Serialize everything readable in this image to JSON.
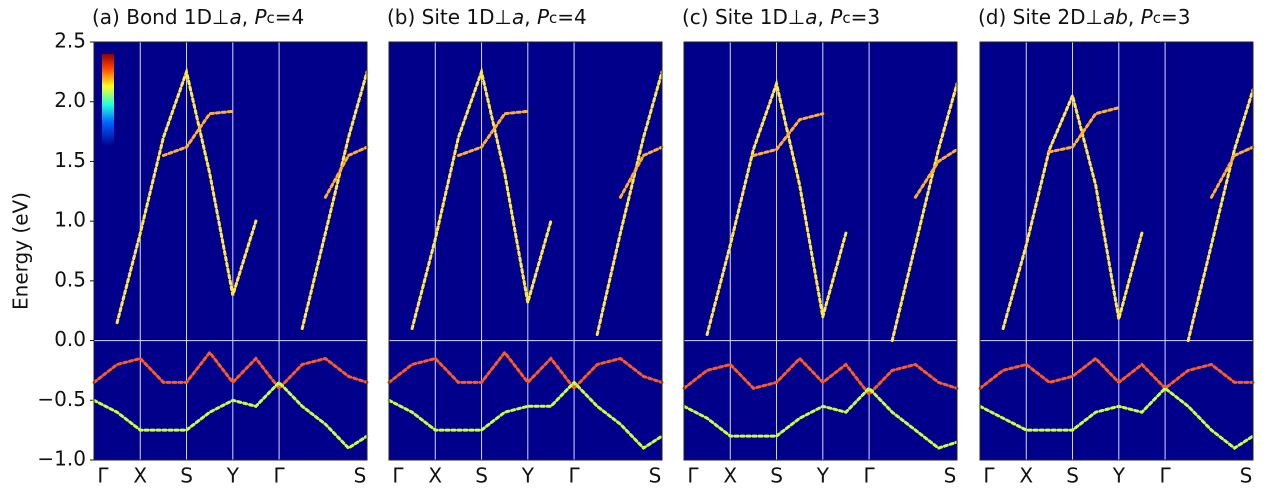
{
  "chart_data": [
    {
      "type": "band",
      "title_runs": [
        {
          "text": "(a) Bond 1D⊥"
        },
        {
          "text": "a",
          "italic": true
        },
        {
          "text": ", "
        },
        {
          "text": "P",
          "italic": true
        },
        {
          "text": "c",
          "small": true
        },
        {
          "text": "=4"
        }
      ],
      "y_label": "Energy (eV)",
      "xlim": [
        0,
        5.9
      ],
      "xticks": [
        {
          "value": 0,
          "label": "Γ"
        },
        {
          "value": 1,
          "label": "X"
        },
        {
          "value": 2,
          "label": "S"
        },
        {
          "value": 3,
          "label": "Y"
        },
        {
          "value": 4,
          "label": "Γ"
        },
        {
          "value": 5.9,
          "label": "S"
        }
      ],
      "ylim": [
        -1.0,
        2.5
      ],
      "yticks": [
        {
          "value": -1.0,
          "label": "−1.0"
        },
        {
          "value": -0.5,
          "label": "−0.5"
        },
        {
          "value": 0.0,
          "label": "0.0"
        },
        0.5,
        {
          "value": 1.0,
          "label": "1.0"
        },
        1.5,
        {
          "value": 2.0,
          "label": "2.0"
        },
        2.5
      ],
      "background": "#00008b",
      "grid": true,
      "hline": 0,
      "x": [
        0,
        0.5,
        1,
        1.5,
        2,
        2.5,
        3,
        3.5,
        4,
        4.5,
        5,
        5.5,
        5.9
      ],
      "series": [
        {
          "color": "#ffe84a",
          "values": [
            null,
            0.15,
            0.9,
            1.7,
            2.25,
            1.4,
            0.38,
            1.0,
            null,
            0.1,
            0.9,
            1.7,
            2.25
          ]
        },
        {
          "color": "#ffb030",
          "values": [
            null,
            null,
            null,
            1.55,
            1.62,
            1.9,
            1.92,
            null,
            null,
            null,
            1.2,
            1.55,
            1.62
          ]
        },
        {
          "color": "#ff5a20",
          "values": [
            -0.35,
            -0.2,
            -0.15,
            -0.35,
            -0.35,
            -0.1,
            -0.35,
            -0.15,
            -0.4,
            -0.2,
            -0.15,
            -0.3,
            -0.35
          ]
        },
        {
          "color": "#c8ff40",
          "values": [
            -0.5,
            -0.6,
            -0.75,
            -0.75,
            -0.75,
            -0.6,
            -0.5,
            -0.55,
            -0.35,
            -0.55,
            -0.7,
            -0.9,
            -0.8
          ]
        }
      ]
    },
    {
      "type": "band",
      "title_runs": [
        {
          "text": "(b) Site 1D⊥"
        },
        {
          "text": "a",
          "italic": true
        },
        {
          "text": ", "
        },
        {
          "text": "P",
          "italic": true
        },
        {
          "text": "c",
          "small": true
        },
        {
          "text": "=4"
        }
      ],
      "xlim": [
        0,
        5.9
      ],
      "xticks": [
        {
          "value": 0,
          "label": "Γ"
        },
        {
          "value": 1,
          "label": "X"
        },
        {
          "value": 2,
          "label": "S"
        },
        {
          "value": 3,
          "label": "Y"
        },
        {
          "value": 4,
          "label": "Γ"
        },
        {
          "value": 5.9,
          "label": "S"
        }
      ],
      "ylim": [
        -1.0,
        2.5
      ],
      "background": "#00008b",
      "grid": true,
      "hline": 0,
      "x": [
        0,
        0.5,
        1,
        1.5,
        2,
        2.5,
        3,
        3.5,
        4,
        4.5,
        5,
        5.5,
        5.9
      ],
      "series": [
        {
          "color": "#ffe84a",
          "values": [
            null,
            0.1,
            0.85,
            1.7,
            2.25,
            1.4,
            0.32,
            1.0,
            null,
            0.05,
            0.9,
            1.7,
            2.25
          ]
        },
        {
          "color": "#ffb030",
          "values": [
            null,
            null,
            null,
            1.55,
            1.62,
            1.9,
            1.92,
            null,
            null,
            null,
            1.2,
            1.55,
            1.62
          ]
        },
        {
          "color": "#ff5a20",
          "values": [
            -0.35,
            -0.2,
            -0.15,
            -0.35,
            -0.35,
            -0.1,
            -0.35,
            -0.15,
            -0.4,
            -0.2,
            -0.15,
            -0.3,
            -0.35
          ]
        },
        {
          "color": "#c8ff40",
          "values": [
            -0.5,
            -0.6,
            -0.75,
            -0.75,
            -0.75,
            -0.6,
            -0.55,
            -0.55,
            -0.35,
            -0.55,
            -0.7,
            -0.9,
            -0.8
          ]
        }
      ]
    },
    {
      "type": "band",
      "title_runs": [
        {
          "text": "(c) Site 1D⊥"
        },
        {
          "text": "a",
          "italic": true
        },
        {
          "text": ", "
        },
        {
          "text": "P",
          "italic": true
        },
        {
          "text": "c",
          "small": true
        },
        {
          "text": "=3"
        }
      ],
      "xlim": [
        0,
        5.9
      ],
      "xticks": [
        {
          "value": 0,
          "label": "Γ"
        },
        {
          "value": 1,
          "label": "X"
        },
        {
          "value": 2,
          "label": "S"
        },
        {
          "value": 3,
          "label": "Y"
        },
        {
          "value": 4,
          "label": "Γ"
        },
        {
          "value": 5.9,
          "label": "S"
        }
      ],
      "ylim": [
        -1.0,
        2.5
      ],
      "background": "#00008b",
      "grid": true,
      "hline": 0,
      "x": [
        0,
        0.5,
        1,
        1.5,
        2,
        2.5,
        3,
        3.5,
        4,
        4.5,
        5,
        5.5,
        5.9
      ],
      "series": [
        {
          "color": "#ffe84a",
          "values": [
            null,
            0.05,
            0.8,
            1.6,
            2.15,
            1.3,
            0.2,
            0.9,
            null,
            0.0,
            0.8,
            1.6,
            2.15
          ]
        },
        {
          "color": "#ffb030",
          "values": [
            null,
            null,
            null,
            1.55,
            1.6,
            1.85,
            1.9,
            null,
            null,
            null,
            1.2,
            1.5,
            1.6
          ]
        },
        {
          "color": "#ff5a20",
          "values": [
            -0.4,
            -0.25,
            -0.2,
            -0.4,
            -0.35,
            -0.15,
            -0.35,
            -0.2,
            -0.45,
            -0.25,
            -0.2,
            -0.35,
            -0.4
          ]
        },
        {
          "color": "#c8ff40",
          "values": [
            -0.55,
            -0.65,
            -0.8,
            -0.8,
            -0.8,
            -0.65,
            -0.55,
            -0.6,
            -0.4,
            -0.6,
            -0.75,
            -0.9,
            -0.85
          ]
        }
      ]
    },
    {
      "type": "band",
      "title_runs": [
        {
          "text": "(d) Site 2D⊥"
        },
        {
          "text": "ab",
          "italic": true
        },
        {
          "text": ", "
        },
        {
          "text": "P",
          "italic": true
        },
        {
          "text": "c",
          "small": true
        },
        {
          "text": "=3"
        }
      ],
      "xlim": [
        0,
        5.9
      ],
      "xticks": [
        {
          "value": 0,
          "label": "Γ"
        },
        {
          "value": 1,
          "label": "X"
        },
        {
          "value": 2,
          "label": "S"
        },
        {
          "value": 3,
          "label": "Y"
        },
        {
          "value": 4,
          "label": "Γ"
        },
        {
          "value": 5.9,
          "label": "S"
        }
      ],
      "ylim": [
        -1.0,
        2.5
      ],
      "background": "#00008b",
      "grid": true,
      "hline": 0,
      "x": [
        0,
        0.5,
        1,
        1.5,
        2,
        2.5,
        3,
        3.5,
        4,
        4.5,
        5,
        5.5,
        5.9
      ],
      "series": [
        {
          "color": "#ffe84a",
          "values": [
            null,
            0.1,
            0.8,
            1.6,
            2.05,
            1.3,
            0.18,
            0.9,
            null,
            0.0,
            0.8,
            1.6,
            2.1
          ]
        },
        {
          "color": "#ffb030",
          "values": [
            null,
            null,
            null,
            1.58,
            1.62,
            1.9,
            1.95,
            null,
            null,
            null,
            1.2,
            1.55,
            1.62
          ]
        },
        {
          "color": "#ff5a20",
          "values": [
            -0.4,
            -0.25,
            -0.2,
            -0.35,
            -0.3,
            -0.15,
            -0.35,
            -0.2,
            -0.4,
            -0.25,
            -0.2,
            -0.35,
            -0.35
          ]
        },
        {
          "color": "#c8ff40",
          "values": [
            -0.55,
            -0.65,
            -0.75,
            -0.75,
            -0.75,
            -0.6,
            -0.55,
            -0.6,
            -0.4,
            -0.55,
            -0.75,
            -0.9,
            -0.8
          ]
        }
      ]
    }
  ]
}
